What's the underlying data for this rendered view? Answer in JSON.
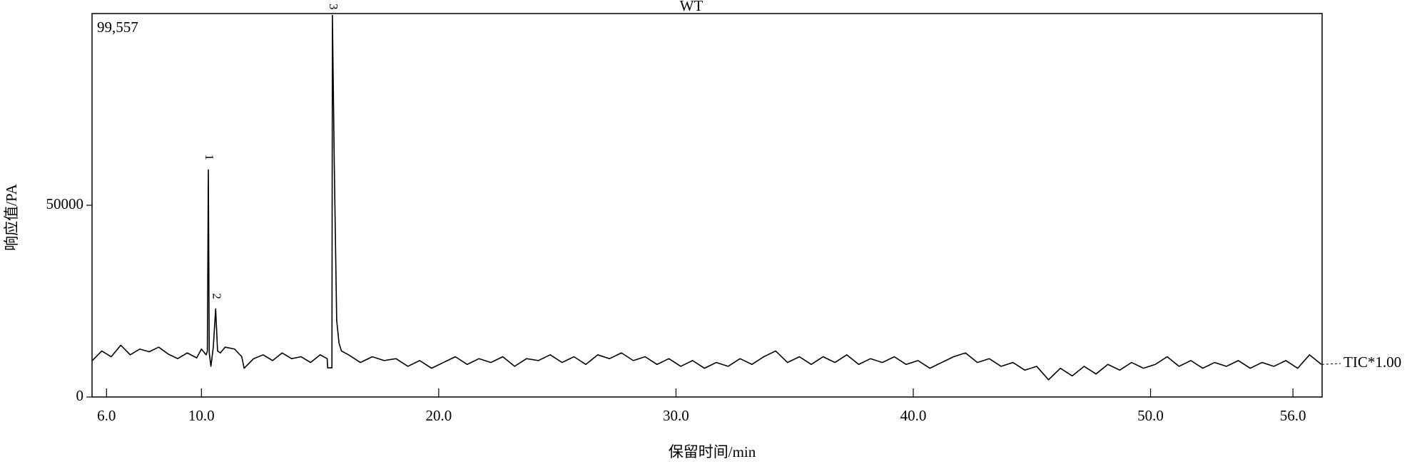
{
  "chart_data": {
    "type": "line",
    "title": "WT",
    "x_label": "保留时间/min",
    "y_label": "响应值/PA",
    "max_label": "99,557",
    "trace_label": "TIC*1.00",
    "xlim": [
      5.39,
      57.23
    ],
    "ylim": [
      0,
      100000
    ],
    "xticks": [
      {
        "value": 6,
        "label": "6.0"
      },
      {
        "value": 10,
        "label": "10.0"
      },
      {
        "value": 20,
        "label": "20.0"
      },
      {
        "value": 30,
        "label": "30.0"
      },
      {
        "value": 40,
        "label": "40.0"
      },
      {
        "value": 50,
        "label": "50.0"
      },
      {
        "value": 56,
        "label": "56.0"
      }
    ],
    "yticks": [
      0,
      50000
    ],
    "peak_labels": [
      {
        "text": "1",
        "x": 10.29
      },
      {
        "text": "2",
        "x": 10.6
      },
      {
        "text": "3",
        "x": 15.52
      }
    ],
    "series": [
      {
        "color": "#000000",
        "x": [
          5.4,
          5.8,
          6.2,
          6.6,
          7.0,
          7.4,
          7.8,
          8.2,
          8.6,
          9.0,
          9.4,
          9.8,
          10.0,
          10.2,
          10.25,
          10.29,
          10.33,
          10.4,
          10.5,
          10.6,
          10.68,
          10.8,
          11.0,
          11.4,
          11.7,
          11.8,
          12.2,
          12.6,
          13.0,
          13.4,
          13.8,
          14.2,
          14.6,
          15.0,
          15.3,
          15.32,
          15.5,
          15.52,
          15.6,
          15.7,
          15.8,
          15.9,
          16.2,
          16.7,
          17.2,
          17.7,
          18.2,
          18.7,
          19.2,
          19.7,
          20.2,
          20.7,
          21.2,
          21.7,
          22.2,
          22.7,
          23.2,
          23.7,
          24.2,
          24.7,
          25.2,
          25.7,
          26.2,
          26.7,
          27.2,
          27.7,
          28.2,
          28.7,
          29.2,
          29.7,
          30.2,
          30.7,
          31.2,
          31.7,
          32.2,
          32.7,
          33.2,
          33.7,
          34.2,
          34.7,
          35.2,
          35.7,
          36.2,
          36.7,
          37.2,
          37.7,
          38.2,
          38.7,
          39.2,
          39.7,
          40.2,
          40.7,
          41.2,
          41.7,
          42.2,
          42.7,
          43.2,
          43.7,
          44.2,
          44.7,
          45.2,
          45.7,
          46.2,
          46.7,
          47.2,
          47.7,
          48.2,
          48.7,
          49.2,
          49.7,
          50.2,
          50.7,
          51.2,
          51.7,
          52.2,
          52.7,
          53.2,
          53.7,
          54.2,
          54.7,
          55.2,
          55.7,
          56.2,
          56.7,
          57.2
        ],
        "values": [
          9500,
          12000,
          10500,
          13500,
          11000,
          12500,
          11800,
          13000,
          11200,
          10000,
          11500,
          10200,
          12500,
          11000,
          12000,
          59240,
          11500,
          8000,
          13000,
          23000,
          12000,
          11500,
          13000,
          12500,
          10500,
          7500,
          10000,
          11000,
          9500,
          11500,
          10000,
          10500,
          9000,
          11000,
          10000,
          7600,
          7600,
          99557,
          60000,
          20000,
          14000,
          12000,
          11000,
          9000,
          10500,
          9500,
          10000,
          8000,
          9500,
          7500,
          9000,
          10500,
          8500,
          10000,
          9000,
          10500,
          8000,
          10000,
          9500,
          11000,
          9000,
          10500,
          8500,
          11000,
          10000,
          11500,
          9500,
          10500,
          8500,
          10000,
          8000,
          9500,
          7500,
          9000,
          8000,
          10000,
          8500,
          10500,
          12000,
          9000,
          10500,
          8500,
          10500,
          9000,
          11000,
          8500,
          10000,
          9000,
          10500,
          8500,
          9500,
          7500,
          9000,
          10500,
          11500,
          9000,
          10000,
          8000,
          9000,
          7000,
          8000,
          4500,
          7500,
          5500,
          8000,
          6000,
          8500,
          7000,
          9000,
          7500,
          8500,
          10500,
          8000,
          9500,
          7500,
          9000,
          8000,
          9500,
          7500,
          9000,
          8000,
          9500,
          7500,
          11000,
          8500
        ]
      }
    ]
  }
}
